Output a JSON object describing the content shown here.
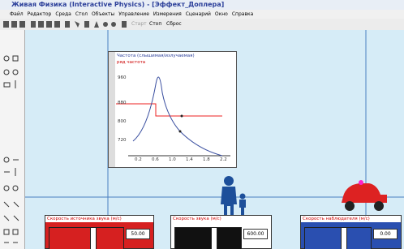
{
  "window": {
    "title": "Живая Физика (Interactive Physics) - [Эффект_Доплера]"
  },
  "menu": [
    "Файл",
    "Редактор",
    "Среда",
    "Стол",
    "Объекты",
    "Управление",
    "Измерения",
    "Сценарий",
    "Окно",
    "Справка"
  ],
  "toolbar": {
    "buttons": [
      "Старт",
      "Стоп",
      "Сброс"
    ]
  },
  "graph": {
    "title": "Частота (слышимая/излучаемая)",
    "legend": "ряд частота",
    "yticks": [
      "960",
      "880",
      "800",
      "720"
    ],
    "xticks": [
      "0.2",
      "0.6",
      "1.0",
      "1.4",
      "1.8",
      "2.2"
    ]
  },
  "controls": [
    {
      "label": "Скорость источника звука (м/с)",
      "value": "50.00"
    },
    {
      "label": "Скорость звука (м/с)",
      "value": "600.00"
    },
    {
      "label": "Скорость наблюдателя (м/с)",
      "value": "0.00"
    }
  ]
}
